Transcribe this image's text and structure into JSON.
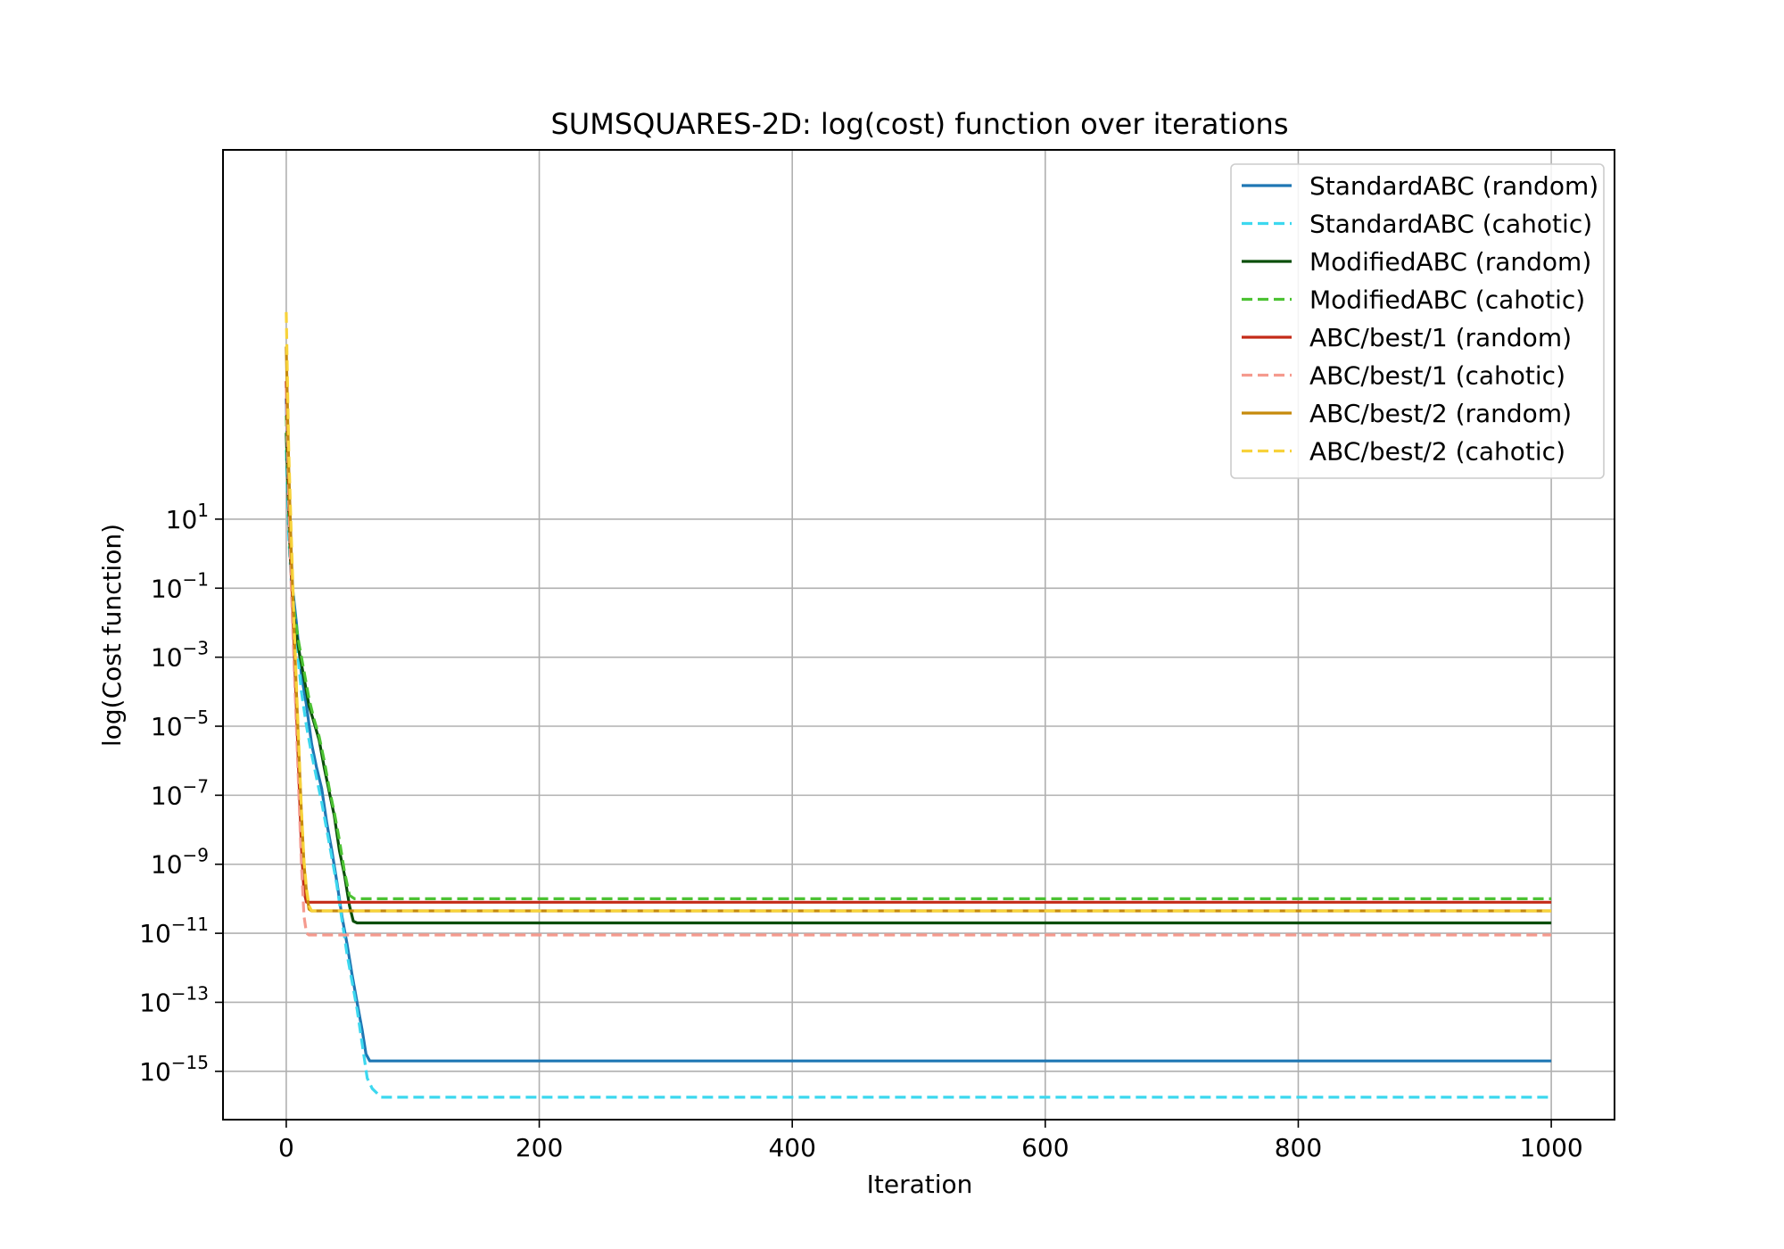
{
  "chart_data": {
    "type": "line",
    "title": "SUMSQUARES-2D: log(cost) function over iterations",
    "xlabel": "Iteration",
    "ylabel": "log(Cost function)",
    "xlim": [
      -50,
      1050
    ],
    "ylim_log10": [
      -16.4,
      11.7
    ],
    "yscale": "log",
    "grid": true,
    "legend_position": "top-right",
    "x_ticks": [
      0,
      200,
      400,
      600,
      800,
      1000
    ],
    "x_tick_labels": [
      "0",
      "200",
      "400",
      "600",
      "800",
      "1000"
    ],
    "y_ticks": [
      {
        "exp": 1,
        "base": "10",
        "sup": "1"
      },
      {
        "exp": -1,
        "base": "10",
        "sup": "−1"
      },
      {
        "exp": -3,
        "base": "10",
        "sup": "−3"
      },
      {
        "exp": -5,
        "base": "10",
        "sup": "−5"
      },
      {
        "exp": -7,
        "base": "10",
        "sup": "−7"
      },
      {
        "exp": -9,
        "base": "10",
        "sup": "−9"
      },
      {
        "exp": -11,
        "base": "10",
        "sup": "−11"
      },
      {
        "exp": -13,
        "base": "10",
        "sup": "−13"
      },
      {
        "exp": -15,
        "base": "10",
        "sup": "−15"
      }
    ],
    "series": [
      {
        "name": "StandardABC (random)",
        "color": "#1f77b4",
        "dash": false,
        "points": [
          [
            0,
            4.5
          ],
          [
            2,
            1.0
          ],
          [
            5,
            -1.0
          ],
          [
            8,
            -2.0
          ],
          [
            12,
            -3.5
          ],
          [
            16,
            -4.4
          ],
          [
            20,
            -5.5
          ],
          [
            24,
            -6.2
          ],
          [
            28,
            -6.8
          ],
          [
            32,
            -7.8
          ],
          [
            36,
            -8.6
          ],
          [
            40,
            -9.5
          ],
          [
            44,
            -10.5
          ],
          [
            48,
            -11.3
          ],
          [
            52,
            -12.2
          ],
          [
            56,
            -13.0
          ],
          [
            60,
            -13.8
          ],
          [
            63,
            -14.5
          ],
          [
            66,
            -14.7
          ],
          [
            75,
            -14.7
          ],
          [
            1000,
            -14.7
          ]
        ]
      },
      {
        "name": "StandardABC (cahotic)",
        "color": "#3dd8ef",
        "dash": true,
        "points": [
          [
            0,
            3.0
          ],
          [
            2,
            0.5
          ],
          [
            5,
            -1.5
          ],
          [
            8,
            -2.5
          ],
          [
            12,
            -4.0
          ],
          [
            16,
            -5.0
          ],
          [
            20,
            -5.8
          ],
          [
            24,
            -6.5
          ],
          [
            28,
            -7.2
          ],
          [
            32,
            -8.0
          ],
          [
            36,
            -8.8
          ],
          [
            40,
            -9.6
          ],
          [
            44,
            -10.6
          ],
          [
            48,
            -11.6
          ],
          [
            52,
            -12.4
          ],
          [
            56,
            -13.2
          ],
          [
            60,
            -14.2
          ],
          [
            64,
            -15.2
          ],
          [
            68,
            -15.5
          ],
          [
            75,
            -15.75
          ],
          [
            1000,
            -15.75
          ]
        ]
      },
      {
        "name": "ModifiedABC (random)",
        "color": "#0b4f0b",
        "dash": false,
        "points": [
          [
            0,
            3.5
          ],
          [
            3,
            0.0
          ],
          [
            6,
            -1.8
          ],
          [
            10,
            -2.8
          ],
          [
            14,
            -3.6
          ],
          [
            18,
            -4.4
          ],
          [
            22,
            -4.9
          ],
          [
            26,
            -5.4
          ],
          [
            30,
            -6.2
          ],
          [
            34,
            -6.9
          ],
          [
            38,
            -7.6
          ],
          [
            42,
            -8.6
          ],
          [
            46,
            -9.3
          ],
          [
            50,
            -10.2
          ],
          [
            53,
            -10.65
          ],
          [
            56,
            -10.7
          ],
          [
            1000,
            -10.7
          ]
        ]
      },
      {
        "name": "ModifiedABC (cahotic)",
        "color": "#4cc233",
        "dash": true,
        "points": [
          [
            0,
            4.0
          ],
          [
            3,
            0.2
          ],
          [
            6,
            -1.6
          ],
          [
            10,
            -2.6
          ],
          [
            14,
            -3.4
          ],
          [
            18,
            -4.2
          ],
          [
            22,
            -4.8
          ],
          [
            26,
            -5.3
          ],
          [
            30,
            -6.0
          ],
          [
            34,
            -6.8
          ],
          [
            38,
            -7.5
          ],
          [
            42,
            -8.3
          ],
          [
            46,
            -9.2
          ],
          [
            50,
            -9.9
          ],
          [
            54,
            -10.0
          ],
          [
            1000,
            -10.0
          ]
        ]
      },
      {
        "name": "ABC/best/1 (random)",
        "color": "#c42b18",
        "dash": false,
        "points": [
          [
            0,
            5.0
          ],
          [
            2,
            2.0
          ],
          [
            4,
            -0.5
          ],
          [
            6,
            -2.5
          ],
          [
            8,
            -4.5
          ],
          [
            10,
            -6.5
          ],
          [
            12,
            -8.5
          ],
          [
            14,
            -9.8
          ],
          [
            16,
            -10.1
          ],
          [
            1000,
            -10.1
          ]
        ]
      },
      {
        "name": "ABC/best/1 (cahotic)",
        "color": "#f59a8e",
        "dash": true,
        "points": [
          [
            0,
            4.8
          ],
          [
            2,
            1.5
          ],
          [
            4,
            -1.0
          ],
          [
            6,
            -3.0
          ],
          [
            8,
            -5.0
          ],
          [
            10,
            -7.0
          ],
          [
            12,
            -9.0
          ],
          [
            14,
            -10.5
          ],
          [
            16,
            -11.0
          ],
          [
            18,
            -11.05
          ],
          [
            1000,
            -11.05
          ]
        ]
      },
      {
        "name": "ABC/best/2 (random)",
        "color": "#c68a0c",
        "dash": false,
        "points": [
          [
            0,
            6.0
          ],
          [
            2,
            2.5
          ],
          [
            4,
            0.0
          ],
          [
            6,
            -2.0
          ],
          [
            8,
            -4.0
          ],
          [
            10,
            -5.8
          ],
          [
            12,
            -7.5
          ],
          [
            14,
            -9.0
          ],
          [
            16,
            -9.8
          ],
          [
            18,
            -10.3
          ],
          [
            20,
            -10.35
          ],
          [
            1000,
            -10.35
          ]
        ]
      },
      {
        "name": "ABC/best/2 (cahotic)",
        "color": "#f7d23a",
        "dash": true,
        "points": [
          [
            0,
            7.0
          ],
          [
            2,
            3.0
          ],
          [
            4,
            0.5
          ],
          [
            6,
            -1.8
          ],
          [
            8,
            -3.8
          ],
          [
            10,
            -5.6
          ],
          [
            12,
            -7.4
          ],
          [
            14,
            -8.9
          ],
          [
            16,
            -9.7
          ],
          [
            18,
            -10.2
          ],
          [
            20,
            -10.35
          ],
          [
            1000,
            -10.35
          ]
        ]
      }
    ]
  }
}
